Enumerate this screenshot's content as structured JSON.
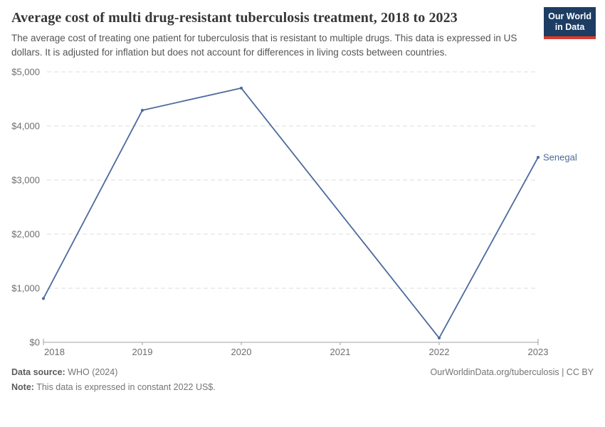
{
  "header": {
    "title": "Average cost of multi drug-resistant tuberculosis treatment, 2018 to 2023",
    "subtitle": "The average cost of treating one patient for tuberculosis that is resistant to multiple drugs. This data is expressed in US dollars. It is adjusted for inflation but does not account for differences in living costs between countries.",
    "logo": {
      "line1": "Our World",
      "line2": "in Data",
      "bg_color": "#1d3d63",
      "underline_color": "#dc3a2b"
    }
  },
  "chart_data": {
    "type": "line",
    "title": "Average cost of multi drug-resistant tuberculosis treatment, 2018 to 2023",
    "x": [
      2018,
      2019,
      2020,
      2021,
      2022,
      2023
    ],
    "series": [
      {
        "name": "Senegal",
        "color": "#4c6a9c",
        "values": [
          810,
          4290,
          4700,
          null,
          80,
          3420
        ]
      }
    ],
    "ylim": [
      0,
      5000
    ],
    "xlim": [
      2018,
      2023
    ],
    "yticks": [
      {
        "value": 0,
        "label": "$0"
      },
      {
        "value": 1000,
        "label": "$1,000"
      },
      {
        "value": 2000,
        "label": "$2,000"
      },
      {
        "value": 3000,
        "label": "$3,000"
      },
      {
        "value": 4000,
        "label": "$4,000"
      },
      {
        "value": 5000,
        "label": "$5,000"
      }
    ],
    "xticks": [
      {
        "value": 2018,
        "label": "2018"
      },
      {
        "value": 2019,
        "label": "2019"
      },
      {
        "value": 2020,
        "label": "2020"
      },
      {
        "value": 2021,
        "label": "2021"
      },
      {
        "value": 2022,
        "label": "2022"
      },
      {
        "value": 2023,
        "label": "2023"
      }
    ],
    "grid": "horizontal-dashed",
    "legend_position": "line-end-label",
    "axis_color": "#a1a1a1",
    "gridline_color": "#dcdcdc",
    "tick_label_color": "#6e6e73",
    "markers": true
  },
  "footer": {
    "datasource_label": "Data source:",
    "datasource_value": "WHO (2024)",
    "note_label": "Note:",
    "note_value": "This data is expressed in constant 2022 US$.",
    "credit": "OurWorldinData.org/tuberculosis | CC BY"
  }
}
